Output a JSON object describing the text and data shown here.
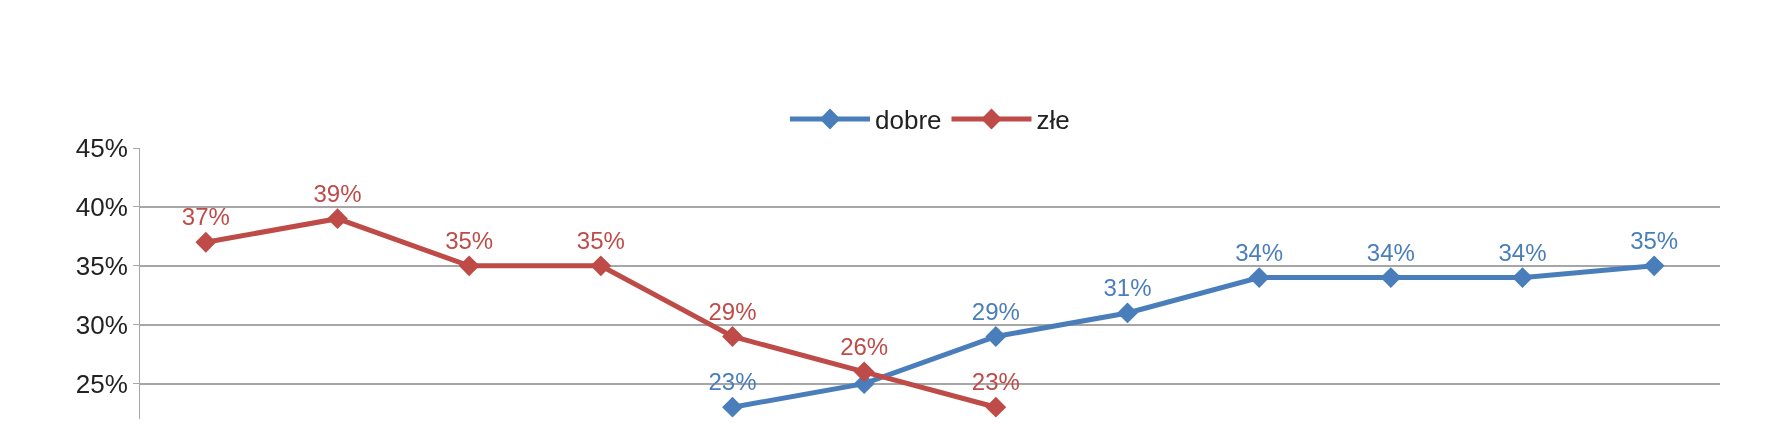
{
  "chart_data": {
    "type": "line",
    "categories": [
      null,
      null,
      null,
      null,
      null,
      null,
      null,
      null,
      null,
      null,
      null,
      null
    ],
    "series": [
      {
        "name": "dobre",
        "color": "#4a7ebb",
        "values": [
          null,
          null,
          null,
          null,
          23,
          25,
          29,
          31,
          34,
          34,
          34,
          35
        ],
        "value_labels": [
          null,
          null,
          null,
          null,
          "23%",
          null,
          "29%",
          "31%",
          "34%",
          "34%",
          "34%",
          "35%"
        ]
      },
      {
        "name": "złe",
        "color": "#be4b48",
        "values": [
          37,
          39,
          35,
          35,
          29,
          26,
          23,
          null,
          null,
          null,
          null,
          null
        ],
        "value_labels": [
          "37%",
          "39%",
          "35%",
          "35%",
          "29%",
          "26%",
          "23%",
          null,
          null,
          null,
          null,
          null
        ]
      }
    ],
    "ylim": [
      22,
      45
    ],
    "yticks": [
      {
        "value": 25,
        "label": "25%"
      },
      {
        "value": 30,
        "label": "30%"
      },
      {
        "value": 35,
        "label": "35%"
      },
      {
        "value": 40,
        "label": "40%"
      },
      {
        "value": 45,
        "label": "45%"
      }
    ],
    "grid": "y",
    "legend": "top",
    "marker": "diamond",
    "line_style": "solid",
    "tick_labels": "y"
  }
}
